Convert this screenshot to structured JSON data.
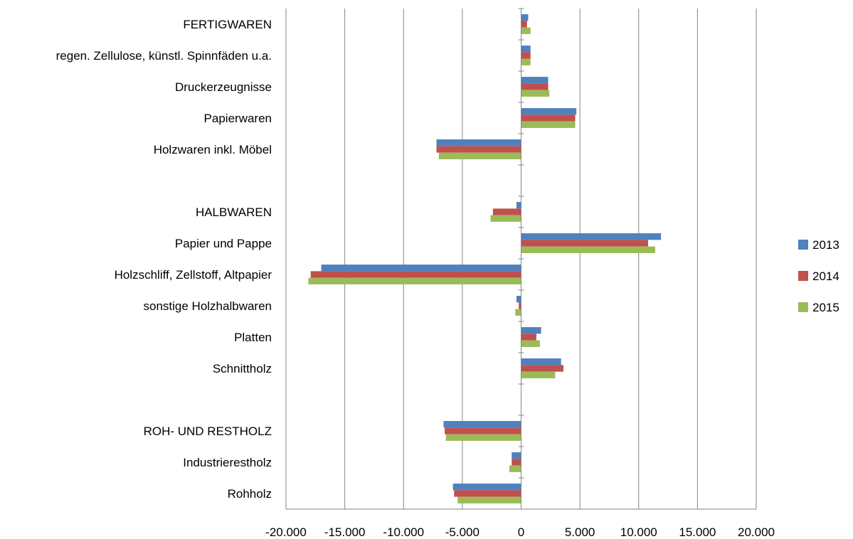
{
  "chart_data": {
    "type": "bar",
    "orientation": "horizontal",
    "categories": [
      "FERTIGWAREN",
      "regen. Zellulose, künstl. Spinnfäden u.a.",
      "Druckerzeugnisse",
      "Papierwaren",
      "Holzwaren inkl. Möbel",
      "",
      "HALBWAREN",
      "Papier und Pappe",
      "Holzschliff, Zellstoff, Altpapier",
      "sonstige Holzhalbwaren",
      "Platten",
      "Schnittholz",
      "",
      "ROH- UND RESTHOLZ",
      "Industrierestholz",
      "Rohholz"
    ],
    "series": [
      {
        "name": "2013",
        "color": "#4F81BD",
        "values": [
          600,
          800,
          2300,
          4700,
          -7200,
          null,
          -400,
          11900,
          -17000,
          -400,
          1700,
          3400,
          null,
          -6600,
          -800,
          -5800
        ]
      },
      {
        "name": "2014",
        "color": "#C0504D",
        "values": [
          500,
          800,
          2300,
          4600,
          -7200,
          null,
          -2400,
          10800,
          -17900,
          -200,
          1300,
          3600,
          null,
          -6500,
          -800,
          -5700
        ]
      },
      {
        "name": "2015",
        "color": "#9BBB59",
        "values": [
          800,
          800,
          2400,
          4600,
          -7000,
          null,
          -2600,
          11400,
          -18100,
          -500,
          1600,
          2900,
          null,
          -6400,
          -1000,
          -5400
        ]
      }
    ],
    "xlim": [
      -20000,
      20000
    ],
    "xticks": [
      -20000,
      -15000,
      -10000,
      -5000,
      0,
      5000,
      10000,
      15000,
      20000
    ],
    "xtick_labels": [
      "-20.000",
      "-15.000",
      "-10.000",
      "-5.000",
      "0",
      "5.000",
      "10.000",
      "15.000",
      "20.000"
    ],
    "grid": "vertical",
    "legend_position": "right",
    "title": "",
    "xlabel": "",
    "ylabel": ""
  }
}
